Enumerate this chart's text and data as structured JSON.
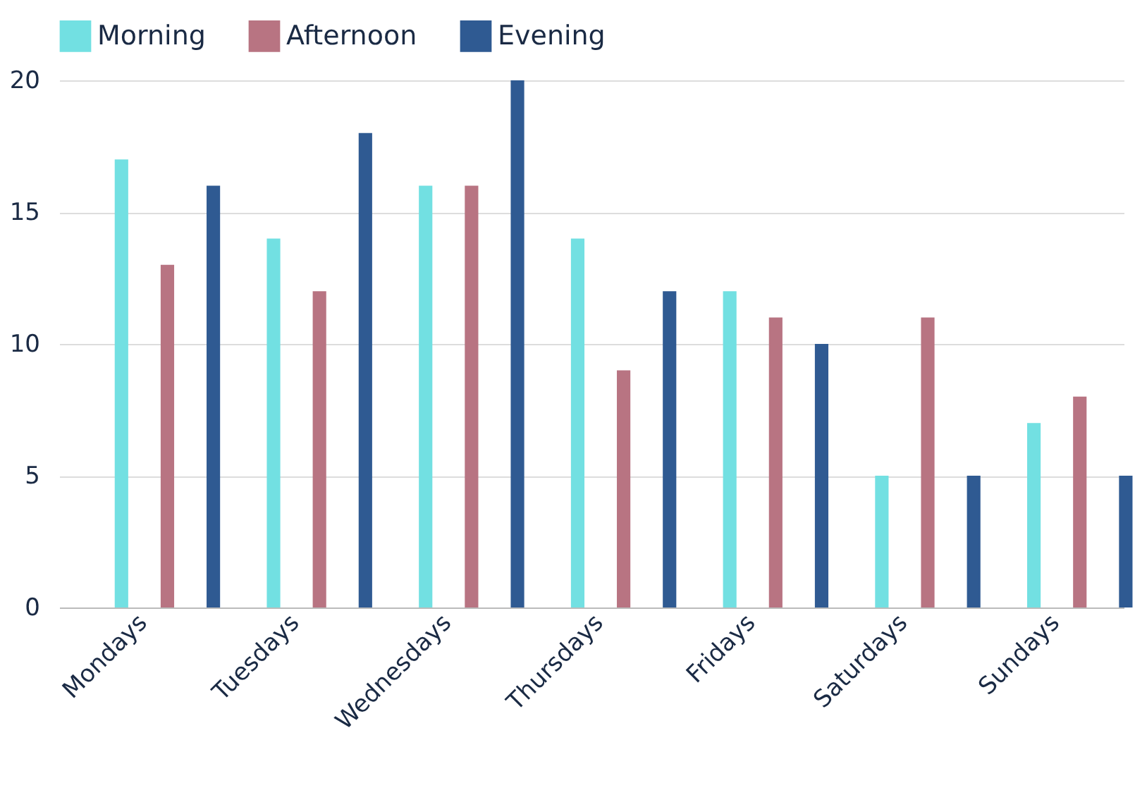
{
  "chart_data": {
    "type": "bar",
    "categories": [
      "Mondays",
      "Tuesdays",
      "Wednesdays",
      "Thursdays",
      "Fridays",
      "Saturdays",
      "Sundays"
    ],
    "series": [
      {
        "name": "Morning",
        "color": "#72e0e2",
        "values": [
          17,
          14,
          16,
          14,
          12,
          5,
          7
        ]
      },
      {
        "name": "Afternoon",
        "color": "#b87482",
        "values": [
          13,
          12,
          16,
          9,
          11,
          11,
          8
        ]
      },
      {
        "name": "Evening",
        "color": "#2f5a92",
        "values": [
          16,
          18,
          20,
          12,
          10,
          5,
          5
        ]
      }
    ],
    "ylim": [
      0,
      20
    ],
    "yticks": [
      0,
      5,
      10,
      15,
      20
    ],
    "grid": "y",
    "legend": "top"
  }
}
